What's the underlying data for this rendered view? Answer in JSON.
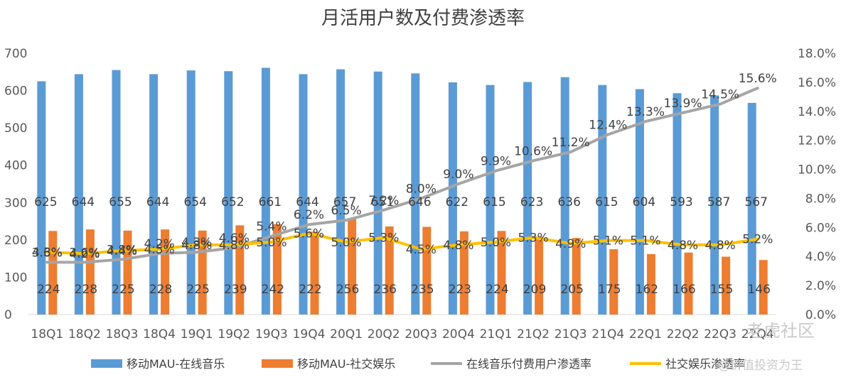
{
  "chart_data": {
    "type": "bar",
    "title": "月活用户数及付费渗透率",
    "categories": [
      "18Q1",
      "18Q2",
      "18Q3",
      "18Q4",
      "19Q1",
      "19Q2",
      "19Q3",
      "19Q4",
      "20Q1",
      "20Q2",
      "20Q3",
      "20Q4",
      "21Q1",
      "21Q2",
      "21Q3",
      "21Q4",
      "22Q1",
      "22Q2",
      "22Q3",
      "22Q4"
    ],
    "left_axis": {
      "ylim": [
        0,
        700
      ],
      "ticks": [
        "0",
        "100",
        "200",
        "300",
        "400",
        "500",
        "600",
        "700"
      ]
    },
    "right_axis": {
      "ylim": [
        0,
        18
      ],
      "ticks": [
        "0.0%",
        "2.0%",
        "4.0%",
        "6.0%",
        "8.0%",
        "10.0%",
        "12.0%",
        "14.0%",
        "16.0%",
        "18.0%"
      ]
    },
    "series": [
      {
        "name": "移动MAU-在线音乐",
        "kind": "bar",
        "axis": "left",
        "color": "#5B9BD5",
        "values": [
          625,
          644,
          655,
          644,
          654,
          652,
          661,
          644,
          657,
          651,
          646,
          622,
          615,
          623,
          636,
          615,
          604,
          593,
          587,
          567
        ]
      },
      {
        "name": "移动MAU-社交娱乐",
        "kind": "bar",
        "axis": "left",
        "color": "#ED7D31",
        "values": [
          224,
          228,
          225,
          228,
          225,
          239,
          242,
          222,
          256,
          236,
          235,
          223,
          224,
          209,
          205,
          175,
          162,
          166,
          155,
          146
        ]
      },
      {
        "name": "在线音乐付费用户渗透率",
        "kind": "line",
        "axis": "right",
        "color": "#A5A5A5",
        "values": [
          3.6,
          3.6,
          3.8,
          4.2,
          4.3,
          4.6,
          5.4,
          6.2,
          6.5,
          7.2,
          8.0,
          9.0,
          9.9,
          10.6,
          11.2,
          12.4,
          13.3,
          13.9,
          14.5,
          15.6
        ],
        "labels": [
          "3.6%",
          "3.6%",
          "3.8%",
          "4.2%",
          "4.3%",
          "4.6%",
          "5.4%",
          "6.2%",
          "6.5%",
          "7.2%",
          "8.0%",
          "9.0%",
          "9.9%",
          "10.6%",
          "11.2%",
          "12.4%",
          "13.3%",
          "13.9%",
          "14.5%",
          "15.6%"
        ]
      },
      {
        "name": "社交娱乐渗透率",
        "kind": "line",
        "axis": "right",
        "color": "#FFC000",
        "values": [
          4.3,
          4.2,
          4.4,
          4.5,
          4.8,
          4.8,
          5.0,
          5.6,
          5.0,
          5.3,
          4.5,
          4.8,
          5.0,
          5.3,
          4.9,
          5.1,
          5.1,
          4.8,
          4.8,
          5.2
        ],
        "labels": [
          "4.3%",
          "4.2%",
          "4.4%",
          "4.5%",
          "4.8%",
          "4.8%",
          "5.0%",
          "5.6%",
          "5.0%",
          "5.3%",
          "4.5%",
          "4.8%",
          "5.0%",
          "5.3%",
          "4.9%",
          "5.1%",
          "5.1%",
          "4.8%",
          "4.8%",
          "5.2%"
        ]
      }
    ],
    "grid": false,
    "legend_position": "bottom"
  },
  "watermark": {
    "brand": "老虎社区",
    "author": "@价值投资为王"
  }
}
